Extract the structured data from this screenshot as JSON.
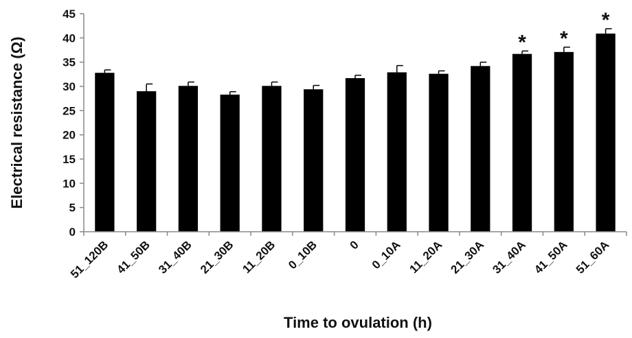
{
  "chart_data": {
    "type": "bar",
    "categories": [
      "51_120B",
      "41_50B",
      "31_40B",
      "21_30B",
      "11_20B",
      "0_10B",
      "0",
      "0_10A",
      "11_20A",
      "21_30A",
      "31_40A",
      "41_50A",
      "51_60A"
    ],
    "values": [
      32.8,
      29.0,
      30.1,
      28.3,
      30.1,
      29.4,
      31.7,
      32.9,
      32.6,
      34.2,
      36.7,
      37.1,
      40.9
    ],
    "error": [
      0.6,
      1.5,
      0.8,
      0.6,
      0.8,
      0.8,
      0.6,
      1.4,
      0.6,
      0.8,
      0.6,
      1.0,
      1.0
    ],
    "significance": [
      "",
      "",
      "",
      "",
      "",
      "",
      "",
      "",
      "",
      "",
      "*",
      "*",
      "*"
    ],
    "xlabel": "Time to ovulation (h)",
    "ylabel": "Electrical resistance (Ω)",
    "ylim": [
      0,
      45
    ],
    "yticks": [
      0,
      5,
      10,
      15,
      20,
      25,
      30,
      35,
      40,
      45
    ],
    "bar_color": "#000000",
    "grid": false,
    "legend": "none"
  }
}
